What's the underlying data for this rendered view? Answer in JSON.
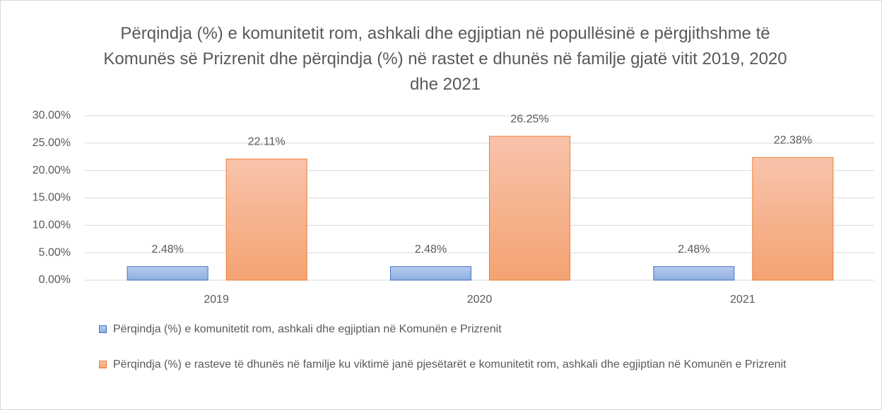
{
  "chart_data": {
    "type": "bar",
    "title": "Përqindja (%) e komunitetit rom, ashkali dhe egjiptian në popullësinë e përgjithshme të Komunës së Prizrenit dhe përqindja (%) në rastet e dhunës në familje gjatë vitit 2019, 2020 dhe 2021",
    "categories": [
      "2019",
      "2020",
      "2021"
    ],
    "series": [
      {
        "name": "Përqindja (%) e komunitetit rom, ashkali dhe egjiptian në Komunën e Prizrenit",
        "color": "#4472c4",
        "values": [
          2.48,
          2.48,
          2.48
        ],
        "value_labels": [
          "2.48%",
          "2.48%",
          "2.48%"
        ]
      },
      {
        "name": "Përqindja (%) e rasteve të dhunës në familje ku viktimë janë pjesëtarët e komunitetit rom, ashkali dhe egjiptian në Komunën e Prizrenit",
        "color": "#ed7d31",
        "values": [
          22.11,
          26.25,
          22.38
        ],
        "value_labels": [
          "22.11%",
          "26.25%",
          "22.38%"
        ]
      }
    ],
    "ylim": [
      0,
      30
    ],
    "yticks": [
      {
        "value": 0,
        "label": "0.00%"
      },
      {
        "value": 5,
        "label": "5.00%"
      },
      {
        "value": 10,
        "label": "10.00%"
      },
      {
        "value": 15,
        "label": "15.00%"
      },
      {
        "value": 20,
        "label": "20.00%"
      },
      {
        "value": 25,
        "label": "25.00%"
      },
      {
        "value": 30,
        "label": "30.00%"
      }
    ],
    "grid": true,
    "legend": "bottom"
  }
}
